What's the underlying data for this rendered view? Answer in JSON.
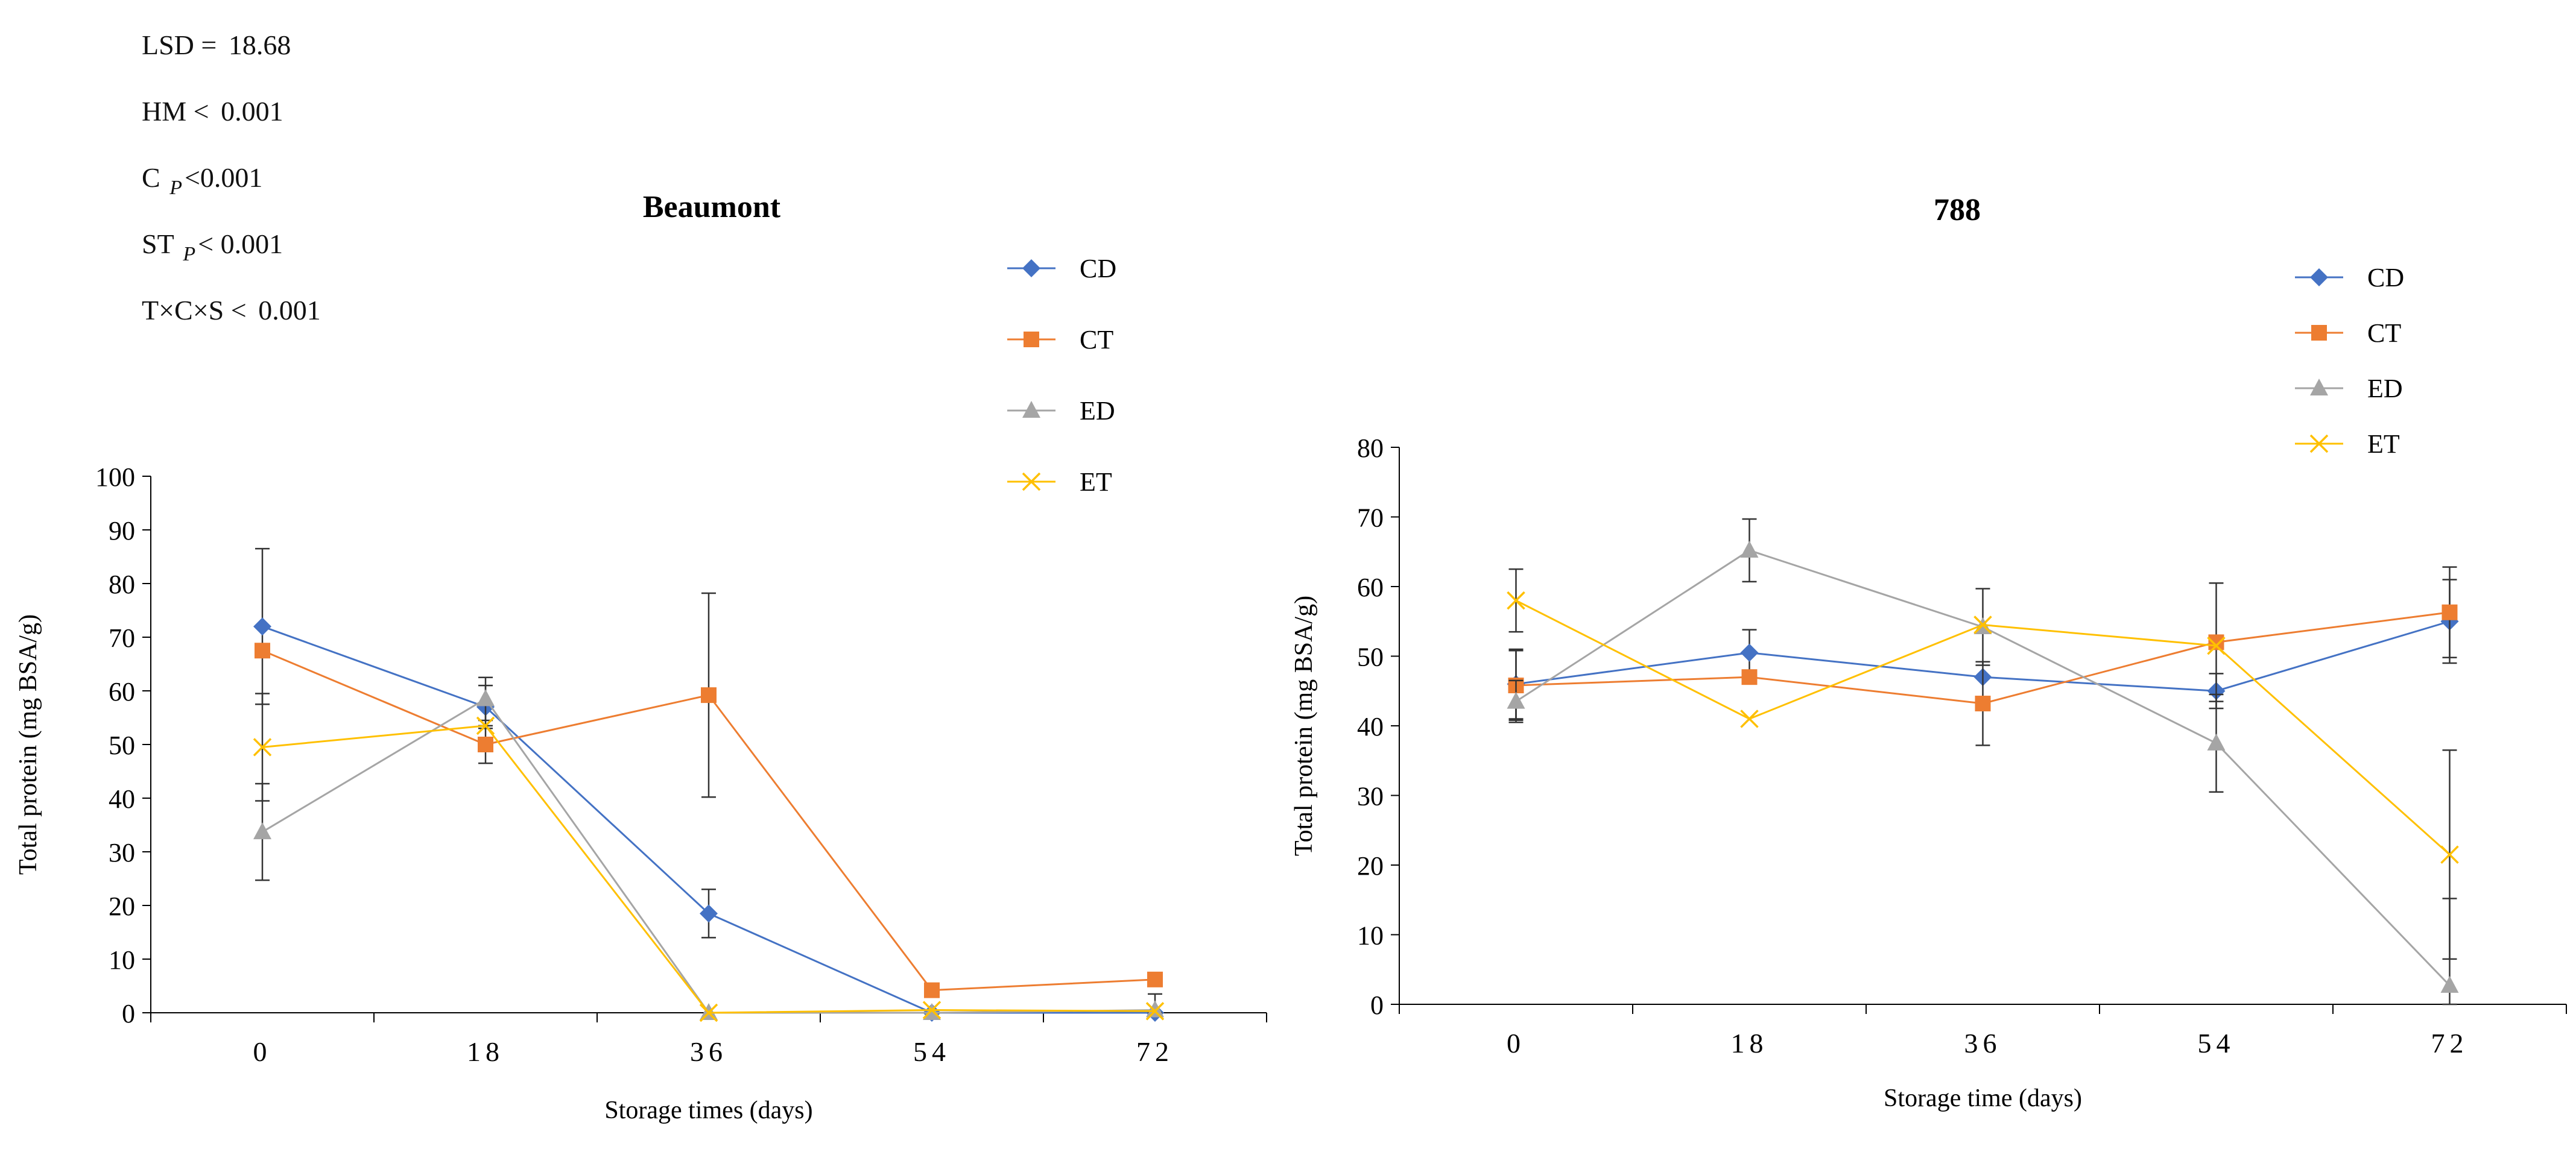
{
  "stats": [
    {
      "pre": "LSD = ",
      "sub": "",
      "post": "18.68"
    },
    {
      "pre": "HM < ",
      "sub": "",
      "post": "0.001"
    },
    {
      "pre": "C ",
      "sub": "P",
      "post": "<0.001"
    },
    {
      "pre": "ST ",
      "sub": "P",
      "post": "< 0.001"
    },
    {
      "pre": "T×C×S < ",
      "sub": "",
      "post": "0.001"
    }
  ],
  "chart_data": [
    {
      "type": "line",
      "title": "Beaumont",
      "xlabel": "Storage times (days)",
      "ylabel": "Total protein (mg BSA/g)",
      "categories": [
        "0",
        "18",
        "36",
        "54",
        "72"
      ],
      "ylim": [
        0,
        100
      ],
      "yticks": [
        0,
        10,
        20,
        30,
        40,
        50,
        60,
        70,
        80,
        90,
        100
      ],
      "legend_position": "top-right",
      "series": [
        {
          "name": "CD",
          "color": "#4472C4",
          "marker": "diamond",
          "values": [
            72,
            57,
            18.5,
            0,
            0
          ],
          "errors": [
            14.5,
            4,
            4.5,
            0,
            0
          ]
        },
        {
          "name": "CT",
          "color": "#ED7D31",
          "marker": "square",
          "values": [
            67.5,
            50,
            59.2,
            4.2,
            6.2
          ],
          "errors": [
            0,
            3.5,
            19,
            0,
            0
          ]
        },
        {
          "name": "ED",
          "color": "#A5A5A5",
          "marker": "triangle",
          "values": [
            33.7,
            58.5,
            0,
            0,
            0.5
          ],
          "errors": [
            9,
            4,
            0,
            0,
            3
          ]
        },
        {
          "name": "ET",
          "color": "#FFC000",
          "marker": "x",
          "values": [
            49.5,
            53.5,
            0,
            0.5,
            0.3
          ],
          "errors": [
            10,
            0,
            0,
            0,
            0
          ]
        }
      ]
    },
    {
      "type": "line",
      "title": "788",
      "xlabel": "Storage time (days)",
      "ylabel": "Total protein (mg BSA/g)",
      "categories": [
        "0",
        "18",
        "36",
        "54",
        "72"
      ],
      "ylim": [
        0,
        80
      ],
      "yticks": [
        0,
        10,
        20,
        30,
        40,
        50,
        60,
        70,
        80
      ],
      "legend_position": "top-right",
      "series": [
        {
          "name": "CD",
          "color": "#4472C4",
          "marker": "diamond",
          "values": [
            46,
            50.5,
            47,
            45,
            55
          ],
          "errors": [
            5,
            3.3,
            0,
            2.5,
            6
          ]
        },
        {
          "name": "CT",
          "color": "#ED7D31",
          "marker": "square",
          "values": [
            45.8,
            47,
            43.2,
            52,
            56.3
          ],
          "errors": [
            5,
            0,
            6,
            8.5,
            6.5
          ]
        },
        {
          "name": "ED",
          "color": "#A5A5A5",
          "marker": "triangle",
          "values": [
            43.5,
            65.2,
            54.2,
            37.5,
            2.7
          ],
          "errors": [
            3,
            4.5,
            5.5,
            7,
            12.5
          ]
        },
        {
          "name": "ET",
          "color": "#FFC000",
          "marker": "x",
          "values": [
            58,
            41,
            54.5,
            51.5,
            21.5
          ],
          "errors": [
            4.5,
            0,
            0,
            0,
            15
          ]
        }
      ]
    }
  ]
}
